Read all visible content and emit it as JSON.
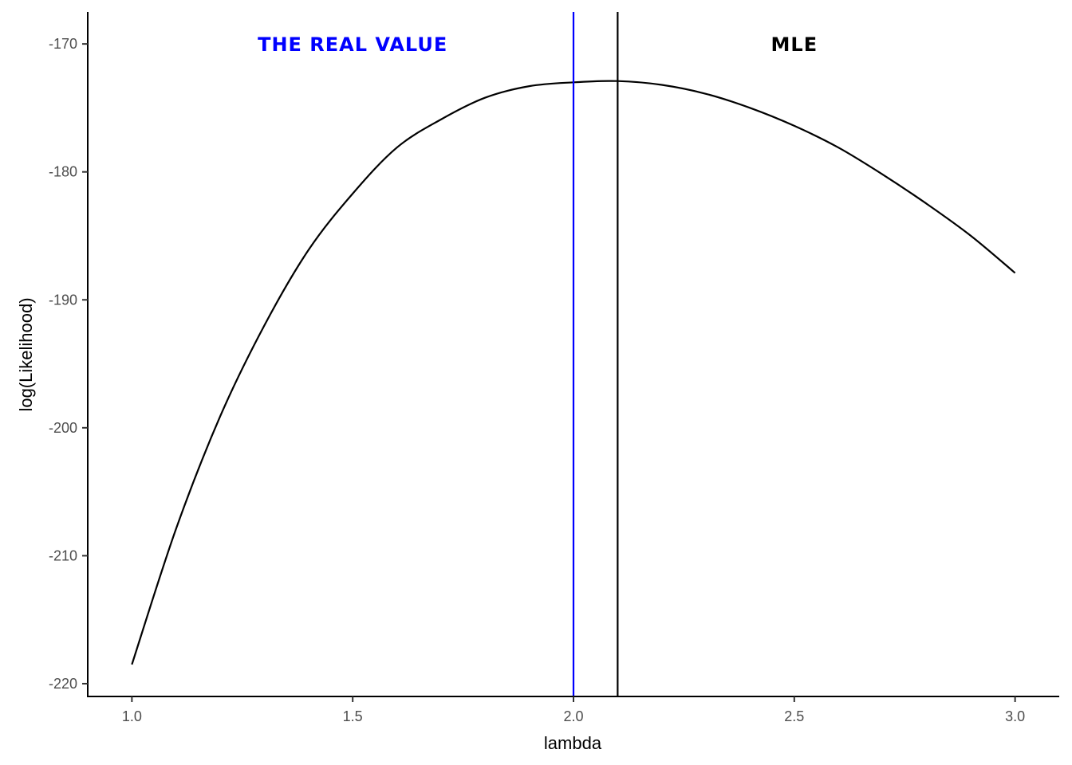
{
  "chart_data": {
    "type": "line",
    "title": "",
    "xlabel": "lambda",
    "ylabel": "log(Likelihood)",
    "xlim": [
      0.9,
      3.1
    ],
    "ylim": [
      -221,
      -167.5
    ],
    "x_ticks": [
      1.0,
      1.5,
      2.0,
      2.5,
      3.0
    ],
    "x_tick_labels": [
      "1.0",
      "1.5",
      "2.0",
      "2.5",
      "3.0"
    ],
    "y_ticks": [
      -170,
      -180,
      -190,
      -200,
      -210,
      -220
    ],
    "y_tick_labels": [
      "-170",
      "-180",
      "-190",
      "-200",
      "-210",
      "-220"
    ],
    "grid": false,
    "series": [
      {
        "color": "#000000",
        "x": [
          1.0,
          1.1,
          1.2,
          1.3,
          1.4,
          1.5,
          1.6,
          1.7,
          1.8,
          1.9,
          2.0,
          2.1,
          2.2,
          2.3,
          2.4,
          2.5,
          2.6,
          2.7,
          2.8,
          2.9,
          3.0
        ],
        "y": [
          -218.5,
          -207.9,
          -199.1,
          -192.0,
          -186.1,
          -181.7,
          -178.1,
          -175.9,
          -174.2,
          -173.3,
          -173.0,
          -172.9,
          -173.2,
          -173.9,
          -175.0,
          -176.4,
          -178.1,
          -180.2,
          -182.5,
          -185.0,
          -187.9
        ]
      }
    ],
    "vlines": [
      {
        "x": 2.0,
        "color": "#0000ff",
        "label": "THE REAL VALUE",
        "label_x": 1.5,
        "label_y": -170
      },
      {
        "x": 2.1,
        "color": "#000000",
        "label": "MLE",
        "label_x": 2.5,
        "label_y": -170
      }
    ]
  }
}
